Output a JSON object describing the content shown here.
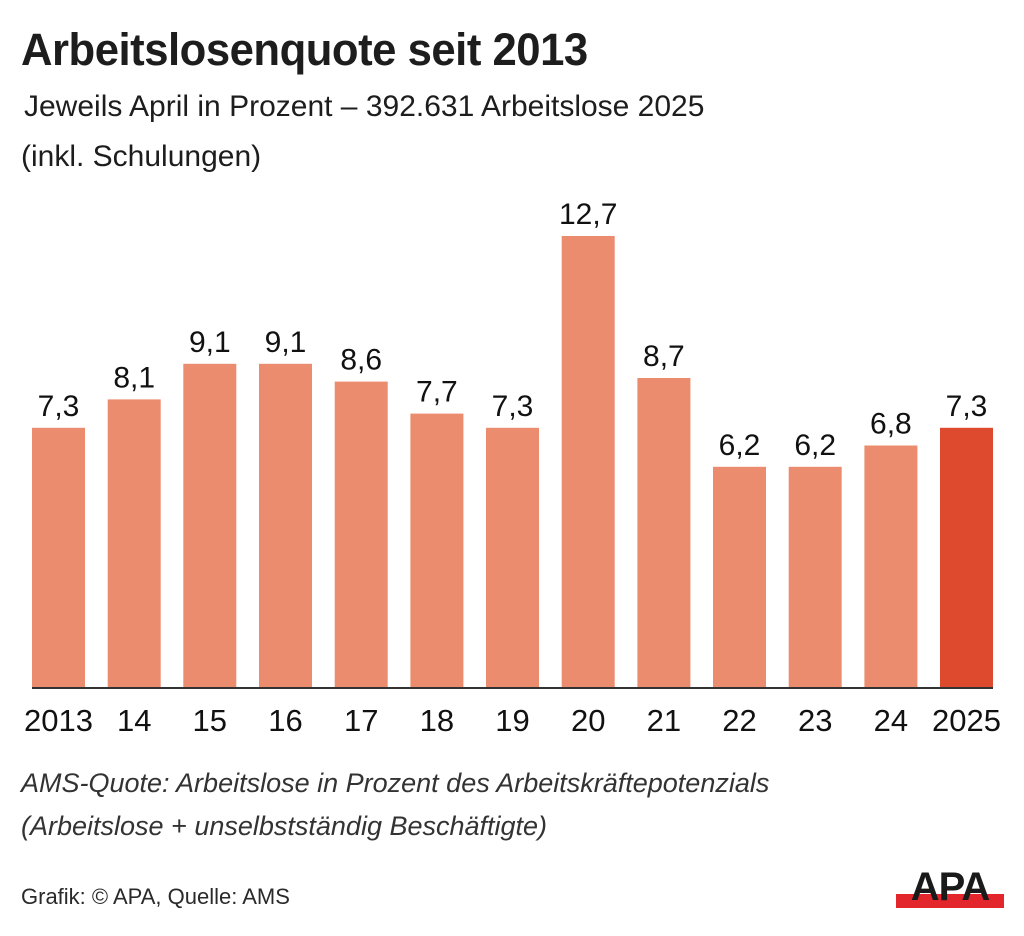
{
  "header": {
    "title": "Arbeitslosenquote seit 2013",
    "subtitle_line1": "Jeweils April in Prozent – 392.631 Arbeitslose 2025",
    "subtitle_line2": "(inkl. Schulungen)"
  },
  "footer": {
    "note_line1": "AMS-Quote: Arbeitslose in Prozent des Arbeitskräftepotenzials",
    "note_line2": "(Arbeitslose + unselbstständig Beschäftigte)",
    "source": "Grafik: © APA, Quelle: AMS",
    "logo_text": "APA"
  },
  "colors": {
    "bar": "#EB8C6E",
    "highlight_bar": "#DE4A2E",
    "axis": "#333333",
    "logo_black": "#1a1a1a",
    "logo_red": "#E3262B"
  },
  "chart_data": {
    "type": "bar",
    "title": "Arbeitslosenquote seit 2013",
    "subtitle": "Jeweils April in Prozent – 392.631 Arbeitslose 2025 (inkl. Schulungen)",
    "xlabel": "",
    "ylabel": "Prozent",
    "categories": [
      "2013",
      "14",
      "15",
      "16",
      "17",
      "18",
      "19",
      "20",
      "21",
      "22",
      "23",
      "24",
      "2025"
    ],
    "values": [
      7.3,
      8.1,
      9.1,
      9.1,
      8.6,
      7.7,
      7.3,
      12.7,
      8.7,
      6.2,
      6.2,
      6.8,
      7.3
    ],
    "data_labels": [
      "7,3",
      "8,1",
      "9,1",
      "9,1",
      "8,6",
      "7,7",
      "7,3",
      "12,7",
      "8,7",
      "6,2",
      "6,2",
      "6,8",
      "7,3"
    ],
    "highlight_index": 12,
    "ylim": [
      0,
      12.7
    ],
    "grid": false,
    "legend": "none"
  }
}
